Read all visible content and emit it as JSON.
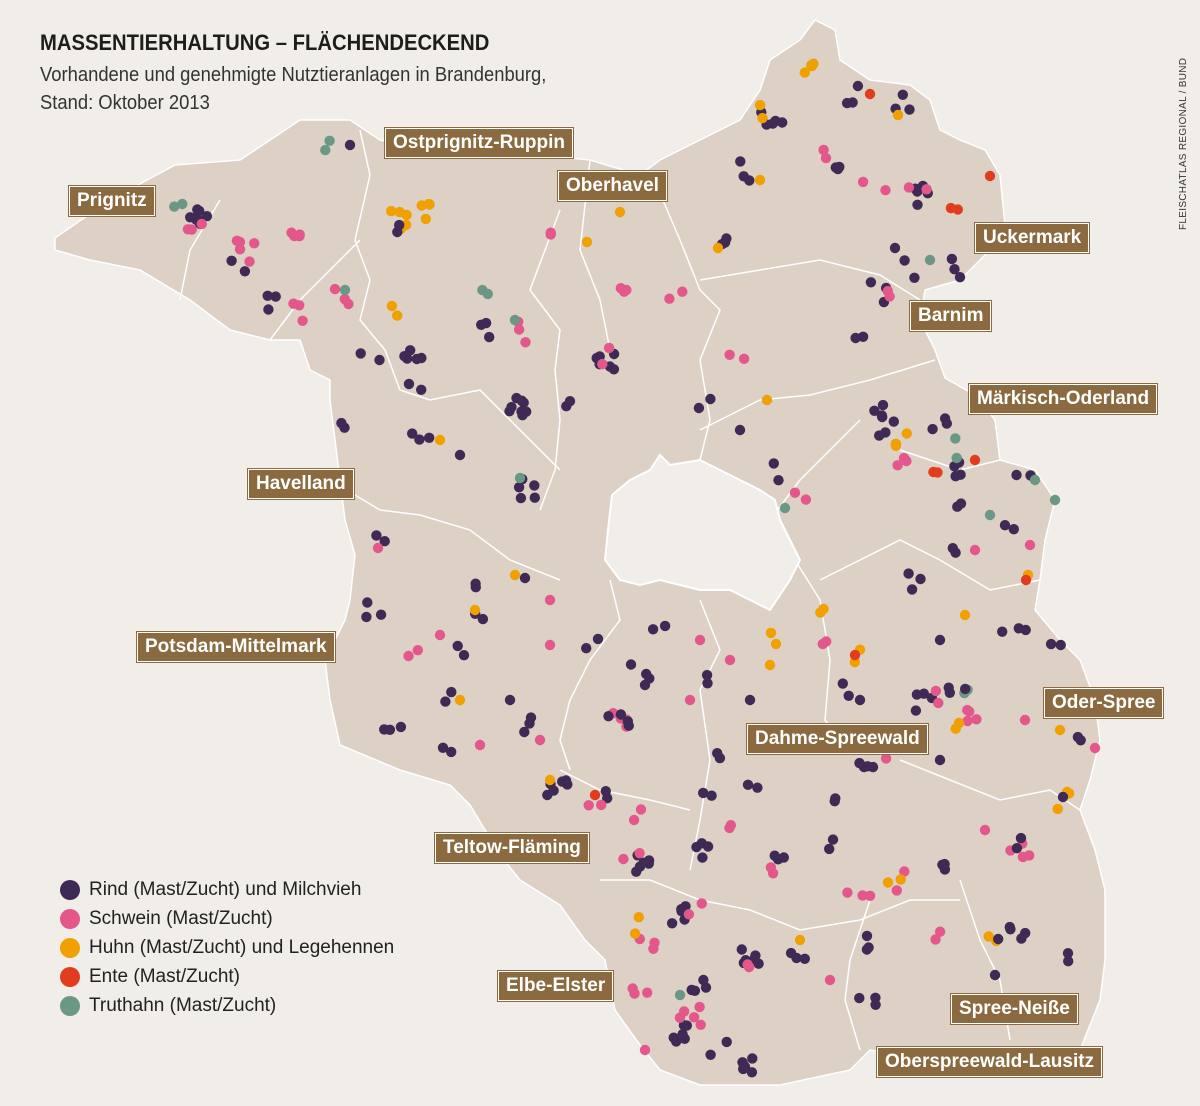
{
  "title": "MASSENTIERHALTUNG – FLÄCHENDECKEND",
  "subtitle_line1": "Vorhandene und genehmigte Nutztieranlagen in Brandenburg,",
  "subtitle_line2": "Stand: Oktober 2013",
  "credit": "FLEISCHATLAS REGIONAL / BUND",
  "colors": {
    "land": "#ddd0c5",
    "berlin": "#f1ede8",
    "border": "#ffffff",
    "label_bg": "#8a6a3e",
    "rind": "#3f2a56",
    "schwein": "#e4578a",
    "huhn": "#f0a000",
    "ente": "#e23c1e",
    "truthahn": "#6a9884"
  },
  "districts": [
    {
      "name": "Prignitz"
    },
    {
      "name": "Ostprignitz-Ruppin"
    },
    {
      "name": "Oberhavel"
    },
    {
      "name": "Uckermark"
    },
    {
      "name": "Barnim"
    },
    {
      "name": "Märkisch-Oderland"
    },
    {
      "name": "Havelland"
    },
    {
      "name": "Potsdam-Mittelmark"
    },
    {
      "name": "Oder-Spree"
    },
    {
      "name": "Dahme-Spreewald"
    },
    {
      "name": "Teltow-Fläming"
    },
    {
      "name": "Elbe-Elster"
    },
    {
      "name": "Spree-Neiße"
    },
    {
      "name": "Oberspreewald-Lausitz"
    }
  ],
  "legend": [
    {
      "key": "rind",
      "label": "Rind (Mast/Zucht) und Milchvieh"
    },
    {
      "key": "schwein",
      "label": "Schwein (Mast/Zucht)"
    },
    {
      "key": "huhn",
      "label": "Huhn (Mast/Zucht) und Legehennen"
    },
    {
      "key": "ente",
      "label": "Ente (Mast/Zucht)"
    },
    {
      "key": "truthahn",
      "label": "Truthahn (Mast/Zucht)"
    }
  ]
}
